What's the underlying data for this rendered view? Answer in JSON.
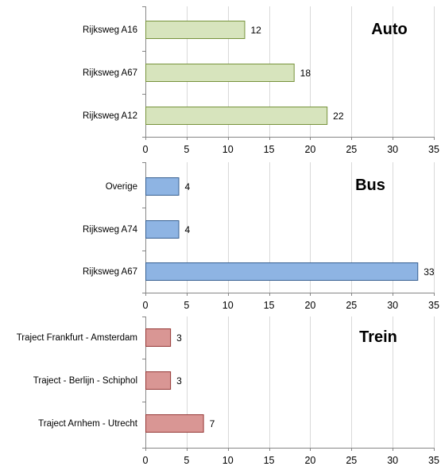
{
  "chart_data": [
    {
      "type": "bar",
      "orientation": "horizontal",
      "title": "Auto",
      "categories": [
        "Rijksweg A16",
        "Rijksweg A67",
        "Rijksweg A12"
      ],
      "values": [
        12,
        18,
        22
      ],
      "color": "#d7e4bd",
      "edge_color": "#77933c",
      "xlim": [
        0,
        35
      ],
      "xticks": [
        0,
        5,
        10,
        15,
        20,
        25,
        30,
        35
      ],
      "grid": true
    },
    {
      "type": "bar",
      "orientation": "horizontal",
      "title": "Bus",
      "categories": [
        "Overige",
        "Rijksweg A74",
        "Rijksweg A67"
      ],
      "values": [
        4,
        4,
        33
      ],
      "color": "#8eb4e3",
      "edge_color": "#376092",
      "xlim": [
        0,
        35
      ],
      "xticks": [
        0,
        5,
        10,
        15,
        20,
        25,
        30,
        35
      ],
      "grid": true
    },
    {
      "type": "bar",
      "orientation": "horizontal",
      "title": "Trein",
      "categories": [
        "Traject Frankfurt - Amsterdam",
        "Traject - Berlijn - Schiphol",
        "Traject Arnhem - Utrecht"
      ],
      "values": [
        3,
        3,
        7
      ],
      "color": "#d99694",
      "edge_color": "#953735",
      "xlim": [
        0,
        35
      ],
      "xticks": [
        0,
        5,
        10,
        15,
        20,
        25,
        30,
        35
      ],
      "grid": true
    }
  ]
}
